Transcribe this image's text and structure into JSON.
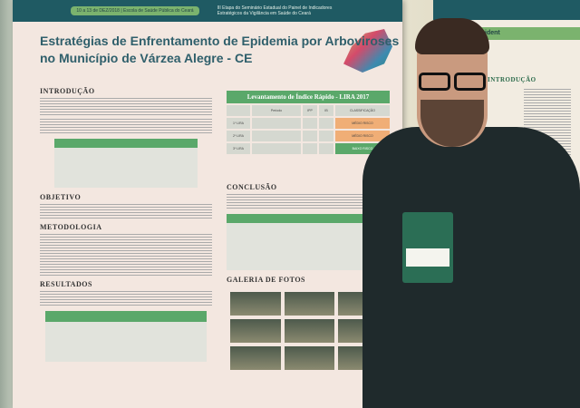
{
  "banner": {
    "dates": "10 a 13 de DEZ/2018 | Escola de Saúde Pública do Ceará",
    "event": "III Etapa do Seminário Estadual do Painel de Indicadores Estratégicos da Vigilância em Saúde do Ceará"
  },
  "poster": {
    "title": "Estratégias de Enfrentamento de Epidemia por Arboviroses no Município de Várzea Alegre - CE",
    "sections": {
      "intro": "INTRODUÇÃO",
      "objective": "OBJETIVO",
      "method": "METODOLOGIA",
      "results": "RESULTADOS",
      "conclusion": "CONCLUSÃO",
      "gallery": "GALERIA DE FOTOS"
    },
    "lira": {
      "title": "Levantamento de Índice Rápido - LIRA 2017",
      "headers": [
        "",
        "Período",
        "IPP",
        "IB",
        "CLASSIFICAÇÃO"
      ],
      "rows": [
        [
          "1º LIRA",
          "",
          "",
          "",
          "MÉDIO RISCO"
        ],
        [
          "2º LIRA",
          "",
          "",
          "",
          "MÉDIO RISCO"
        ],
        [
          "3º LIRA",
          "",
          "",
          "",
          "BAIXO RISCO"
        ]
      ]
    }
  },
  "right_poster": {
    "heading": "INTRODUÇÃO",
    "subtitle": "estigação de Acident"
  },
  "colors": {
    "poster_bg": "#f3e7e0",
    "title": "#2f5f6b",
    "green": "#5aa86a",
    "banner": "#1f5a63"
  }
}
